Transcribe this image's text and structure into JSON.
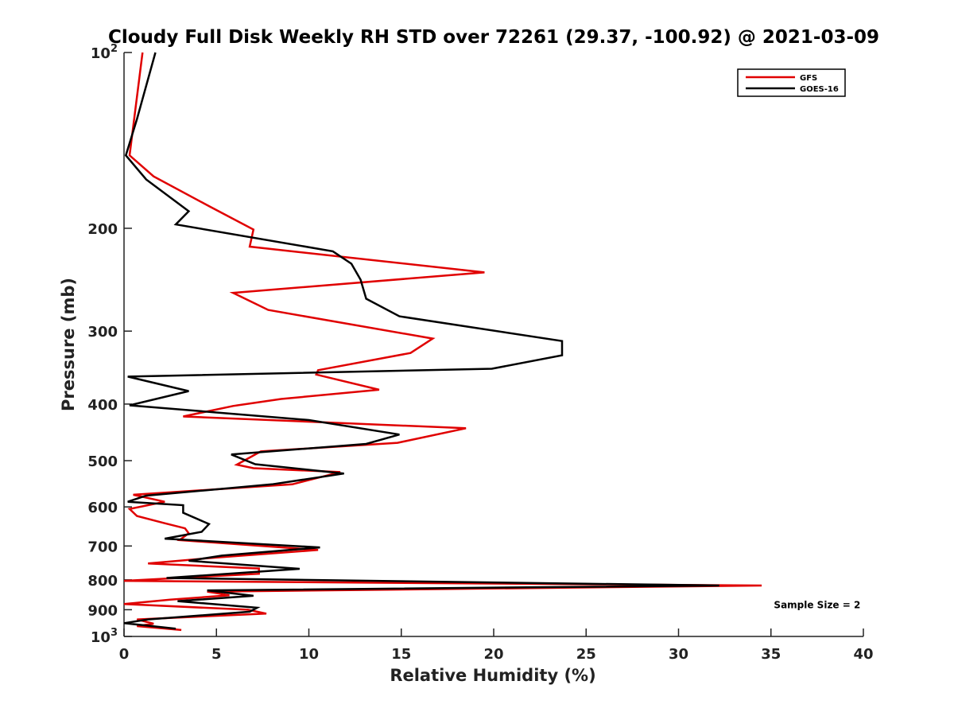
{
  "chart_data": {
    "type": "line",
    "title": "Cloudy Full Disk Weekly RH STD over 72261 (29.37, -100.92) @ 2021-03-09",
    "xlabel": "Relative Humidity (%)",
    "ylabel": "Pressure (mb)",
    "xlim": [
      0,
      40
    ],
    "ylim": [
      100,
      1000
    ],
    "y_scale": "log",
    "y_reversed": true,
    "grid": false,
    "legend_position": "top-right",
    "x_ticks": [
      0,
      5,
      10,
      15,
      20,
      25,
      30,
      35,
      40
    ],
    "y_ticks": [
      {
        "value": 100,
        "base": "10",
        "exp": "2"
      },
      {
        "value": 200,
        "label": "200"
      },
      {
        "value": 300,
        "label": "300"
      },
      {
        "value": 400,
        "label": "400"
      },
      {
        "value": 500,
        "label": "500"
      },
      {
        "value": 600,
        "label": "600"
      },
      {
        "value": 700,
        "label": "700"
      },
      {
        "value": 800,
        "label": "800"
      },
      {
        "value": 900,
        "label": "900"
      },
      {
        "value": 1000,
        "base": "10",
        "exp": "3"
      }
    ],
    "series": [
      {
        "name": "GFS",
        "color": "#e00000",
        "points": [
          [
            1.0,
            100
          ],
          [
            0.3,
            150
          ],
          [
            1.6,
            163
          ],
          [
            4.7,
            184
          ],
          [
            7.0,
            201
          ],
          [
            6.8,
            215
          ],
          [
            19.5,
            238
          ],
          [
            5.9,
            258
          ],
          [
            7.8,
            276
          ],
          [
            16.7,
            309
          ],
          [
            15.5,
            327
          ],
          [
            10.5,
            350
          ],
          [
            10.4,
            356
          ],
          [
            13.8,
            378
          ],
          [
            8.5,
            392
          ],
          [
            5.9,
            403
          ],
          [
            3.2,
            420
          ],
          [
            18.5,
            440
          ],
          [
            14.8,
            466
          ],
          [
            7.4,
            482
          ],
          [
            6.1,
            508
          ],
          [
            7.0,
            515
          ],
          [
            11.7,
            523
          ],
          [
            9.1,
            549
          ],
          [
            0.5,
            572
          ],
          [
            2.2,
            588
          ],
          [
            0.3,
            605
          ],
          [
            0.7,
            622
          ],
          [
            2.2,
            640
          ],
          [
            3.3,
            653
          ],
          [
            3.5,
            666
          ],
          [
            3.0,
            684
          ],
          [
            10.5,
            711
          ],
          [
            4.4,
            735
          ],
          [
            1.3,
            750
          ],
          [
            7.3,
            765
          ],
          [
            7.3,
            781
          ],
          [
            0,
            803
          ],
          [
            34.5,
            818
          ],
          [
            4.5,
            838
          ],
          [
            5.7,
            850
          ],
          [
            2.5,
            865
          ],
          [
            0,
            880
          ],
          [
            6.7,
            900
          ],
          [
            7.7,
            914
          ],
          [
            0.7,
            935
          ],
          [
            1.6,
            951
          ],
          [
            0.7,
            960
          ],
          [
            3.1,
            975
          ]
        ]
      },
      {
        "name": "GOES-16",
        "color": "#000000",
        "points": [
          [
            1.7,
            100
          ],
          [
            0.7,
            130
          ],
          [
            0.1,
            150
          ],
          [
            1.2,
            165
          ],
          [
            3.5,
            187
          ],
          [
            2.8,
            197
          ],
          [
            11.3,
            219
          ],
          [
            12.3,
            230
          ],
          [
            12.8,
            245
          ],
          [
            13.1,
            264
          ],
          [
            14.9,
            283
          ],
          [
            23.7,
            312
          ],
          [
            23.7,
            330
          ],
          [
            19.9,
            348
          ],
          [
            0.2,
            359
          ],
          [
            3.5,
            380
          ],
          [
            0.3,
            402
          ],
          [
            10.0,
            426
          ],
          [
            14.9,
            451
          ],
          [
            13.1,
            468
          ],
          [
            5.8,
            488
          ],
          [
            7.1,
            507
          ],
          [
            11.9,
            526
          ],
          [
            8.0,
            549
          ],
          [
            1.2,
            574
          ],
          [
            0.2,
            588
          ],
          [
            3.2,
            596
          ],
          [
            3.2,
            614
          ],
          [
            4.6,
            642
          ],
          [
            4.2,
            662
          ],
          [
            2.2,
            680
          ],
          [
            10.6,
            704
          ],
          [
            5.3,
            727
          ],
          [
            3.5,
            742
          ],
          [
            9.5,
            766
          ],
          [
            2.3,
            794
          ],
          [
            32.2,
            818
          ],
          [
            4.5,
            834
          ],
          [
            7.0,
            852
          ],
          [
            2.9,
            870
          ],
          [
            7.2,
            893
          ],
          [
            6.8,
            907
          ],
          [
            1.3,
            935
          ],
          [
            0,
            949
          ],
          [
            2.8,
            970
          ]
        ]
      }
    ],
    "annotations": [
      {
        "text": "Sample Size = 2",
        "x": 37.5,
        "y": 895
      }
    ]
  }
}
